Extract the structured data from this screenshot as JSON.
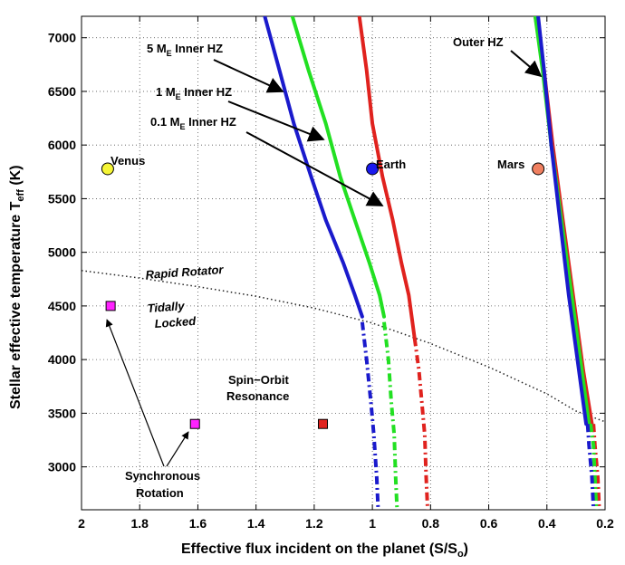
{
  "chart_data": {
    "type": "line",
    "x_reversed": true,
    "xlim": [
      2,
      0.2
    ],
    "ylim": [
      2600,
      7200
    ],
    "xticks": [
      2,
      1.8,
      1.6,
      1.4,
      1.2,
      1,
      0.8,
      0.6,
      0.4,
      0.2
    ],
    "xtick_labels": [
      "2",
      "1.8",
      "1.6",
      "1.4",
      "1.2",
      "1",
      "0.8",
      "0.6",
      "0.4",
      "0.2"
    ],
    "yticks": [
      3000,
      3500,
      4000,
      4500,
      5000,
      5500,
      6000,
      6500,
      7000
    ],
    "ytick_labels": [
      "3000",
      "3500",
      "4000",
      "4500",
      "5000",
      "5500",
      "6000",
      "6500",
      "7000"
    ],
    "grid": true,
    "xlabel": {
      "main": "Effective flux incident on the planet (S/S",
      "sub": "o",
      "close": ")"
    },
    "ylabel": {
      "main": "Stellar effective temperature T",
      "sub": "eff",
      "unit": " (K)"
    },
    "series": [
      {
        "id": "inner-5",
        "color": "#1a1acc",
        "solid": [
          [
            1.37,
            7200
          ],
          [
            1.32,
            6700
          ],
          [
            1.27,
            6200
          ],
          [
            1.21,
            5700
          ],
          [
            1.16,
            5300
          ],
          [
            1.1,
            4900
          ],
          [
            1.06,
            4600
          ],
          [
            1.035,
            4400
          ]
        ],
        "dashed": [
          [
            1.035,
            4350
          ],
          [
            1.02,
            4000
          ],
          [
            1.005,
            3600
          ],
          [
            0.995,
            3300
          ],
          [
            0.985,
            2900
          ],
          [
            0.98,
            2600
          ]
        ]
      },
      {
        "id": "inner-1",
        "color": "#22e022",
        "solid": [
          [
            1.275,
            7200
          ],
          [
            1.22,
            6700
          ],
          [
            1.16,
            6200
          ],
          [
            1.11,
            5700
          ],
          [
            1.06,
            5300
          ],
          [
            1.01,
            4900
          ],
          [
            0.975,
            4600
          ],
          [
            0.96,
            4400
          ]
        ],
        "dashed": [
          [
            0.96,
            4350
          ],
          [
            0.945,
            4000
          ],
          [
            0.935,
            3600
          ],
          [
            0.925,
            3300
          ],
          [
            0.92,
            2900
          ],
          [
            0.915,
            2600
          ]
        ]
      },
      {
        "id": "inner-0.1",
        "color": "#e0221e",
        "solid": [
          [
            1.045,
            7200
          ],
          [
            1.02,
            6700
          ],
          [
            1.0,
            6200
          ],
          [
            0.965,
            5700
          ],
          [
            0.93,
            5300
          ],
          [
            0.9,
            4900
          ],
          [
            0.875,
            4600
          ],
          [
            0.855,
            4200
          ]
        ],
        "dashed": [
          [
            0.855,
            4200
          ],
          [
            0.84,
            3900
          ],
          [
            0.83,
            3600
          ],
          [
            0.82,
            3300
          ],
          [
            0.815,
            2900
          ],
          [
            0.81,
            2600
          ]
        ]
      },
      {
        "id": "outer-red",
        "color": "#e0221e",
        "solid": [
          [
            0.44,
            7200
          ],
          [
            0.41,
            6700
          ],
          [
            0.38,
            6000
          ],
          [
            0.345,
            5300
          ],
          [
            0.31,
            4600
          ],
          [
            0.275,
            3900
          ],
          [
            0.245,
            3400
          ]
        ],
        "dashed": [
          [
            0.24,
            3400
          ],
          [
            0.235,
            3200
          ],
          [
            0.225,
            2900
          ],
          [
            0.22,
            2600
          ]
        ]
      },
      {
        "id": "outer-green",
        "color": "#22e022",
        "solid": [
          [
            0.44,
            7200
          ],
          [
            0.415,
            6700
          ],
          [
            0.385,
            6000
          ],
          [
            0.35,
            5300
          ],
          [
            0.315,
            4600
          ],
          [
            0.28,
            3900
          ],
          [
            0.255,
            3400
          ]
        ],
        "dashed": [
          [
            0.25,
            3400
          ],
          [
            0.24,
            3200
          ],
          [
            0.235,
            2900
          ],
          [
            0.23,
            2600
          ]
        ]
      },
      {
        "id": "outer-blue",
        "color": "#1a1acc",
        "solid": [
          [
            0.43,
            7200
          ],
          [
            0.41,
            6700
          ],
          [
            0.385,
            6000
          ],
          [
            0.355,
            5300
          ],
          [
            0.325,
            4600
          ],
          [
            0.29,
            3900
          ],
          [
            0.265,
            3400
          ]
        ],
        "dashed": [
          [
            0.26,
            3400
          ],
          [
            0.255,
            3200
          ],
          [
            0.245,
            2900
          ],
          [
            0.24,
            2600
          ]
        ]
      }
    ],
    "dotted_curve": [
      [
        2.0,
        4830
      ],
      [
        1.8,
        4760
      ],
      [
        1.6,
        4680
      ],
      [
        1.4,
        4590
      ],
      [
        1.2,
        4480
      ],
      [
        1.0,
        4340
      ],
      [
        0.8,
        4150
      ],
      [
        0.6,
        3930
      ],
      [
        0.4,
        3680
      ],
      [
        0.3,
        3520
      ],
      [
        0.2,
        3420
      ]
    ],
    "points": [
      {
        "name": "Venus",
        "x": 1.91,
        "y": 5778,
        "marker": "circle",
        "color": "#f5f536"
      },
      {
        "name": "Earth",
        "x": 1.0,
        "y": 5778,
        "marker": "circle",
        "color": "#1a1aee"
      },
      {
        "name": "Mars",
        "x": 0.43,
        "y": 5778,
        "marker": "circle",
        "color": "#f08060"
      },
      {
        "name": "",
        "x": 1.9,
        "y": 4500,
        "marker": "square",
        "color": "#ff22ff"
      },
      {
        "name": "",
        "x": 1.61,
        "y": 3400,
        "marker": "square",
        "color": "#ff22ff"
      },
      {
        "name": "",
        "x": 1.17,
        "y": 3400,
        "marker": "square",
        "color": "#e0221e"
      }
    ],
    "annotations": {
      "inner_5": {
        "pre": "5 M",
        "sub": "E",
        "post": " Inner HZ"
      },
      "inner_1": {
        "pre": "1 M",
        "sub": "E",
        "post": " Inner HZ"
      },
      "inner_01": {
        "pre": "0.1 M",
        "sub": "E",
        "post": " Inner HZ"
      },
      "outer": "Outer HZ",
      "rapid": "Rapid Rotator",
      "tidally_1": "Tidally",
      "tidally_2": "Locked",
      "spin_1": "Spin−Orbit",
      "spin_2": "Resonance",
      "sync_1": "Synchronous",
      "sync_2": "Rotation"
    }
  }
}
